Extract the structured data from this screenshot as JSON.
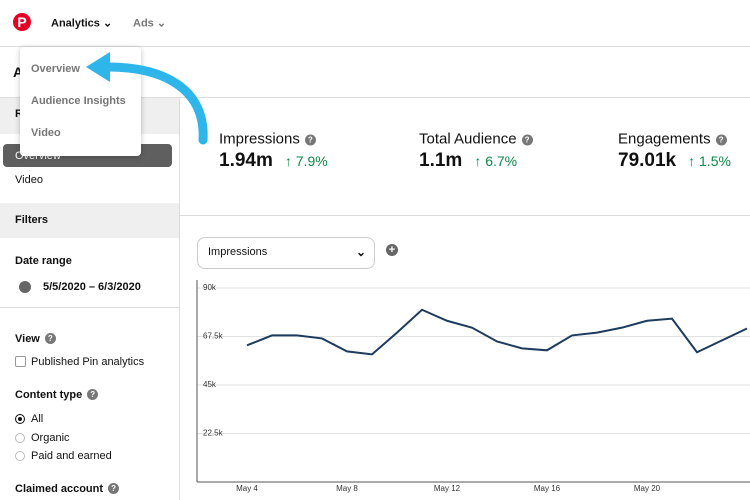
{
  "header": {
    "nav": [
      "Analytics",
      "Ads"
    ]
  },
  "page_title": "A",
  "dropdown": {
    "items": [
      "Overview",
      "Audience Insights",
      "Video"
    ]
  },
  "sidebar": {
    "report_heading": "R",
    "reports": [
      "Overview",
      "Video"
    ],
    "filters_title": "Filters",
    "date_range": {
      "label": "Date range",
      "value": "5/5/2020 – 6/3/2020"
    },
    "view": {
      "label": "View",
      "option": "Published Pin analytics"
    },
    "content_type": {
      "label": "Content type",
      "options": [
        "All",
        "Organic",
        "Paid and earned"
      ]
    },
    "claimed_account": "Claimed account"
  },
  "metrics": [
    {
      "label": "Impressions",
      "value": "1.94m",
      "change": "7.9%"
    },
    {
      "label": "Total Audience",
      "value": "1.1m",
      "change": "6.7%"
    },
    {
      "label": "Engagements",
      "value": "79.01k",
      "change": "1.5%"
    }
  ],
  "chart": {
    "type": "line",
    "selector": "Impressions",
    "categories": [
      "May 4",
      null,
      null,
      null,
      "May 8",
      null,
      null,
      null,
      "May 12",
      null,
      null,
      null,
      "May 16",
      null,
      null,
      null,
      "May 20",
      null,
      null,
      null,
      null
    ],
    "series": [
      {
        "color": "#1d3b5c",
        "values": [
          63400,
          68000,
          68000,
          66600,
          60600,
          59200,
          69300,
          79900,
          74800,
          71600,
          65200,
          62000,
          61100,
          68000,
          69300,
          71600,
          74800,
          75800,
          60200,
          65700,
          71200
        ]
      }
    ],
    "ylim": [
      0,
      90000
    ],
    "yticks": [
      {
        "value": 90000,
        "label": "90k"
      },
      {
        "value": 67500,
        "label": "67.5k"
      },
      {
        "value": 45000,
        "label": "45k"
      },
      {
        "value": 22500,
        "label": "22.5k"
      }
    ],
    "grid": true
  }
}
